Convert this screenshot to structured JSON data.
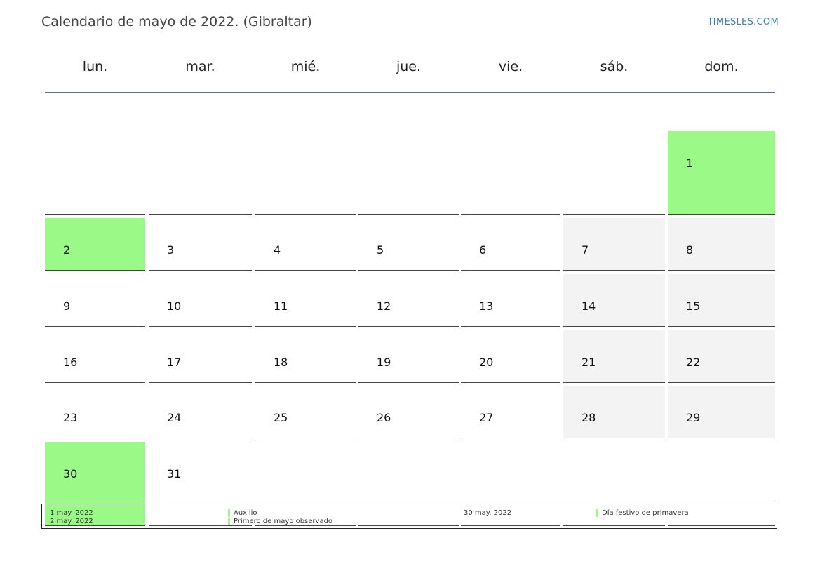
{
  "header": {
    "title": "Calendario de mayo de 2022. (Gibraltar)",
    "brand": "TIMESLES.COM"
  },
  "colors": {
    "holiday": "#9bfa87",
    "weekend": "#f3f3f3",
    "header_rule": "#5a6f9a",
    "brand": "#3b7bbf"
  },
  "weekdays": [
    "lun.",
    "mar.",
    "mié.",
    "jue.",
    "vie.",
    "sáb.",
    "dom."
  ],
  "weeks": [
    [
      null,
      null,
      null,
      null,
      null,
      null,
      "1"
    ],
    [
      "2",
      "3",
      "4",
      "5",
      "6",
      "7",
      "8"
    ],
    [
      "9",
      "10",
      "11",
      "12",
      "13",
      "14",
      "15"
    ],
    [
      "16",
      "17",
      "18",
      "19",
      "20",
      "21",
      "22"
    ],
    [
      "23",
      "24",
      "25",
      "26",
      "27",
      "28",
      "29"
    ],
    [
      "30",
      "31",
      null,
      null,
      null,
      null,
      null
    ]
  ],
  "holidays": [
    "1",
    "2",
    "30"
  ],
  "legend": {
    "left_dates": [
      "1 may. 2022",
      "2 may. 2022"
    ],
    "left_names": [
      "Auxilio",
      "Primero de mayo observado"
    ],
    "right_dates": [
      "30 may. 2022"
    ],
    "right_names": [
      "Día festivo de primavera"
    ]
  }
}
